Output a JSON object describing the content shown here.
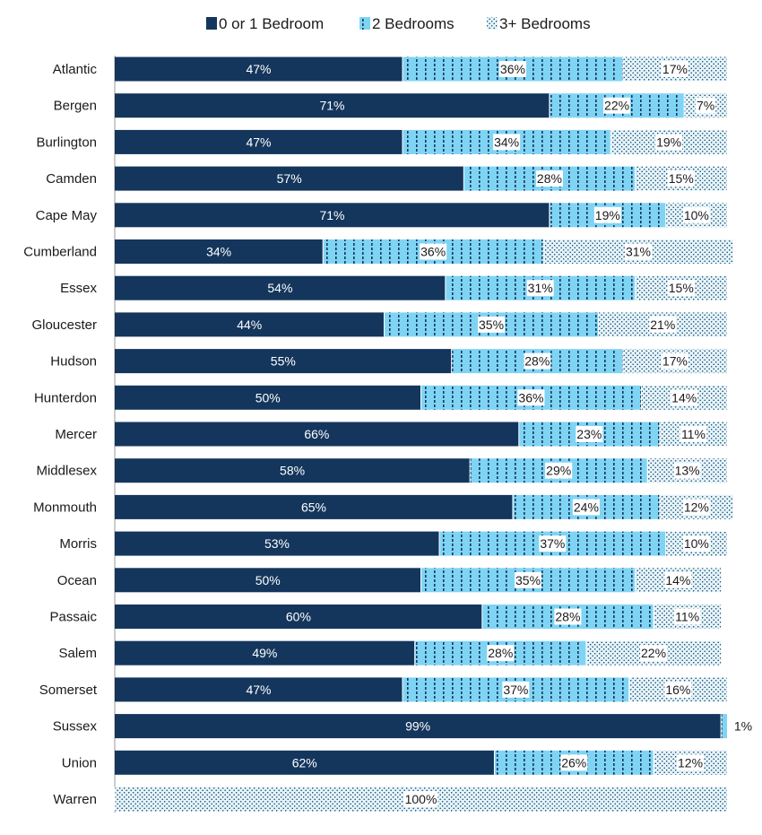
{
  "chart_data": {
    "type": "bar",
    "orientation": "horizontal",
    "stacked": true,
    "legend_position": "top",
    "grid": false,
    "xlim": [
      0,
      100
    ],
    "unit": "%",
    "categories": [
      "Atlantic",
      "Bergen",
      "Burlington",
      "Camden",
      "Cape May",
      "Cumberland",
      "Essex",
      "Gloucester",
      "Hudson",
      "Hunterdon",
      "Mercer",
      "Middlesex",
      "Monmouth",
      "Morris",
      "Ocean",
      "Passaic",
      "Salem",
      "Somerset",
      "Sussex",
      "Union",
      "Warren"
    ],
    "series": [
      {
        "name": "0 or 1 Bedroom",
        "color": "#14365d",
        "pattern": "solid",
        "values": [
          47,
          71,
          47,
          57,
          71,
          34,
          54,
          44,
          55,
          50,
          66,
          58,
          65,
          53,
          50,
          60,
          49,
          47,
          99,
          62,
          0
        ]
      },
      {
        "name": "2 Bedrooms",
        "color": "#7fd4f4",
        "pattern": "dashes",
        "values": [
          36,
          22,
          34,
          28,
          19,
          36,
          31,
          35,
          28,
          36,
          23,
          29,
          24,
          37,
          35,
          28,
          28,
          37,
          1,
          26,
          0
        ]
      },
      {
        "name": "3+ Bedrooms",
        "color": "#c8ebf7",
        "pattern": "dots",
        "values": [
          17,
          7,
          19,
          15,
          10,
          31,
          15,
          21,
          17,
          14,
          11,
          13,
          12,
          10,
          14,
          11,
          22,
          16,
          0,
          12,
          100
        ]
      }
    ]
  }
}
